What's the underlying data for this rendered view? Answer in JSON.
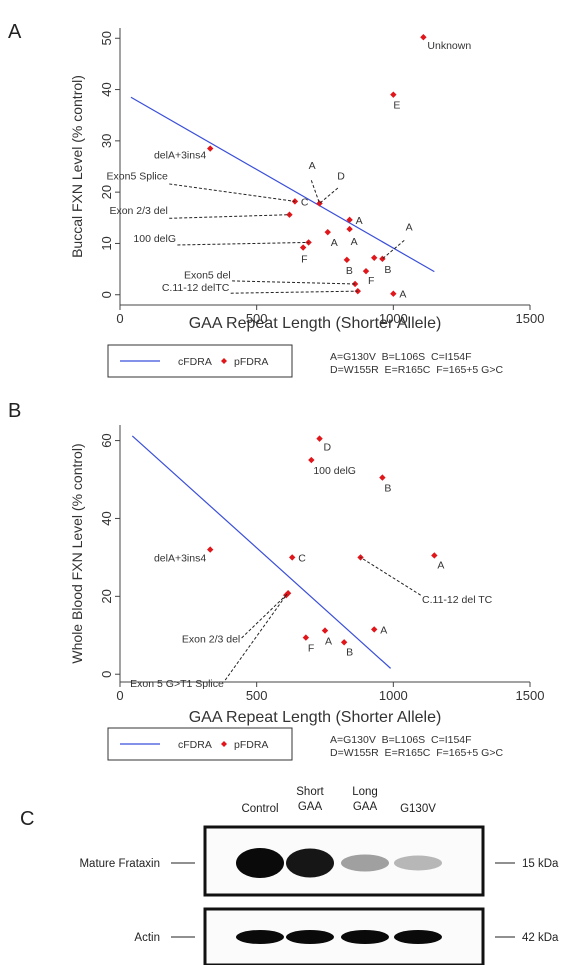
{
  "chart_data": [
    {
      "type": "scatter",
      "panel": "A",
      "xlabel": "GAA Repeat Length (Shorter Allele)",
      "ylabel": "Buccal FXN Level (% control)",
      "xlim": [
        0,
        1500
      ],
      "ylim": [
        -2,
        52
      ],
      "xticks": [
        {
          "v": 0,
          "t": "0"
        },
        {
          "v": 500,
          "t": "500"
        },
        {
          "v": 1000,
          "t": "1000"
        },
        {
          "v": 1500,
          "t": "1500"
        }
      ],
      "yticks": [
        {
          "v": 0,
          "t": "0"
        },
        {
          "v": 10,
          "t": "10"
        },
        {
          "v": 20,
          "t": "20"
        },
        {
          "v": 30,
          "t": "30"
        },
        {
          "v": 40,
          "t": "40"
        },
        {
          "v": 50,
          "t": "50"
        }
      ],
      "series": [
        {
          "name": "cFDRA",
          "kind": "line",
          "color": "#3a4fd9",
          "x": [
            40,
            1150
          ],
          "y": [
            38.5,
            4.5
          ]
        },
        {
          "name": "pFDRA",
          "kind": "scatter",
          "color": "#e0161b",
          "points": [
            {
              "x": 1110,
              "y": 50.2
            },
            {
              "x": 1000,
              "y": 39
            },
            {
              "x": 330,
              "y": 28.5
            },
            {
              "x": 730,
              "y": 17.8
            },
            {
              "x": 640,
              "y": 18.2
            },
            {
              "x": 620,
              "y": 15.6
            },
            {
              "x": 840,
              "y": 14.6
            },
            {
              "x": 840,
              "y": 12.8
            },
            {
              "x": 760,
              "y": 12.2
            },
            {
              "x": 690,
              "y": 10.2
            },
            {
              "x": 670,
              "y": 9.2
            },
            {
              "x": 830,
              "y": 6.8
            },
            {
              "x": 930,
              "y": 7.2
            },
            {
              "x": 960,
              "y": 7
            },
            {
              "x": 900,
              "y": 4.6
            },
            {
              "x": 860,
              "y": 2.1
            },
            {
              "x": 870,
              "y": 0.7
            },
            {
              "x": 1000,
              "y": 0.2
            }
          ]
        }
      ],
      "annotations": [
        {
          "text": "Unknown",
          "x": 1110,
          "y": 50.2,
          "dx": 4,
          "dy": 12,
          "anchor": "start"
        },
        {
          "text": "E",
          "x": 1000,
          "y": 39,
          "dx": 0,
          "dy": 14,
          "anchor": "start"
        },
        {
          "text": "delA+3ins4",
          "x": 330,
          "y": 28.5,
          "dx": -4,
          "dy": 10,
          "anchor": "end"
        },
        {
          "text": "Exon5 Splice",
          "tx": 175,
          "ty": 22.5,
          "anchor": "end",
          "lx": 640,
          "ly": 18.2,
          "lsx": 180,
          "lsy": 21.6
        },
        {
          "text": "Exon 2/3 del",
          "tx": 175,
          "ty": 15.7,
          "anchor": "end",
          "lx": 620,
          "ly": 15.6,
          "lsx": 180,
          "lsy": 14.9
        },
        {
          "text": "100 delG",
          "tx": 205,
          "ty": 10.3,
          "anchor": "end",
          "lx": 690,
          "ly": 10.2,
          "lsx": 210,
          "lsy": 9.7
        },
        {
          "text": "Exon5 del",
          "tx": 405,
          "ty": 3.2,
          "anchor": "end",
          "lx": 860,
          "ly": 2.1,
          "lsx": 410,
          "lsy": 2.7
        },
        {
          "text": "C.11-12 delTC",
          "tx": 400,
          "ty": 0.7,
          "anchor": "end",
          "lx": 870,
          "ly": 0.7,
          "lsx": 405,
          "lsy": 0.3
        },
        {
          "text": "A",
          "tx": 690,
          "ty": 24.5,
          "anchor": "start",
          "lx": 730,
          "ly": 17.8,
          "lsx": 700,
          "lsy": 22.3
        },
        {
          "text": "D",
          "tx": 795,
          "ty": 22.5,
          "anchor": "start",
          "lx": 730,
          "ly": 17.8,
          "lsx": 797,
          "lsy": 20.8
        },
        {
          "text": "C",
          "x": 640,
          "y": 18.2,
          "dx": 6,
          "dy": 4,
          "anchor": "start"
        },
        {
          "text": "A",
          "x": 840,
          "y": 14.6,
          "dx": 6,
          "dy": 4,
          "anchor": "start"
        },
        {
          "text": "A",
          "x": 840,
          "y": 12.8,
          "dx": 1,
          "dy": 16,
          "anchor": "start"
        },
        {
          "text": "A",
          "x": 760,
          "y": 12.2,
          "dx": 3,
          "dy": 14,
          "anchor": "start"
        },
        {
          "text": "F",
          "x": 670,
          "y": 9.2,
          "dx": -2,
          "dy": 15,
          "anchor": "start"
        },
        {
          "text": "B",
          "x": 830,
          "y": 6.8,
          "dx": -1,
          "dy": 14,
          "anchor": "start"
        },
        {
          "text": "B",
          "x": 960,
          "y": 7,
          "dx": 2,
          "dy": 14,
          "anchor": "start"
        },
        {
          "text": "F",
          "x": 900,
          "y": 4.6,
          "dx": 2,
          "dy": 13,
          "anchor": "start"
        },
        {
          "text": "A",
          "x": 1000,
          "y": 0.2,
          "dx": 6,
          "dy": 4,
          "anchor": "start"
        },
        {
          "text": "A",
          "tx": 1045,
          "ty": 12.5,
          "anchor": "start",
          "lx": 960,
          "ly": 7,
          "lsx": 1040,
          "lsy": 10.6
        }
      ],
      "legend": {
        "line_label": "cFDRA",
        "point_label": "pFDRA"
      },
      "key_lines": [
        "A=G130V  B=L106S  C=I154F",
        "D=W155R  E=R165C  F=165+5 G>C"
      ]
    },
    {
      "type": "scatter",
      "panel": "B",
      "xlabel": "GAA Repeat Length (Shorter Allele)",
      "ylabel": "Whole Blood FXN Level (% control)",
      "xlim": [
        0,
        1500
      ],
      "ylim": [
        -2,
        64
      ],
      "xticks": [
        {
          "v": 0,
          "t": "0"
        },
        {
          "v": 500,
          "t": "500"
        },
        {
          "v": 1000,
          "t": "1000"
        },
        {
          "v": 1500,
          "t": "1500"
        }
      ],
      "yticks": [
        {
          "v": 0,
          "t": "0"
        },
        {
          "v": 20,
          "t": "20"
        },
        {
          "v": 40,
          "t": "40"
        },
        {
          "v": 60,
          "t": "60"
        }
      ],
      "series": [
        {
          "name": "cFDRA",
          "kind": "line",
          "color": "#3a4fd9",
          "x": [
            45,
            990
          ],
          "y": [
            61.2,
            1.5
          ]
        },
        {
          "name": "pFDRA",
          "kind": "scatter",
          "color": "#e0161b",
          "points": [
            {
              "x": 730,
              "y": 60.5
            },
            {
              "x": 700,
              "y": 55
            },
            {
              "x": 960,
              "y": 50.5
            },
            {
              "x": 330,
              "y": 32
            },
            {
              "x": 630,
              "y": 30
            },
            {
              "x": 880,
              "y": 30
            },
            {
              "x": 1150,
              "y": 30.5
            },
            {
              "x": 615,
              "y": 20.8
            },
            {
              "x": 608,
              "y": 20.3
            },
            {
              "x": 680,
              "y": 9.4
            },
            {
              "x": 750,
              "y": 11.2
            },
            {
              "x": 820,
              "y": 8.2
            },
            {
              "x": 930,
              "y": 11.5
            }
          ]
        }
      ],
      "annotations": [
        {
          "text": "D",
          "x": 730,
          "y": 60.5,
          "dx": 4,
          "dy": 12,
          "anchor": "start"
        },
        {
          "text": "100 delG",
          "x": 700,
          "y": 55,
          "dx": 2,
          "dy": 14,
          "anchor": "start"
        },
        {
          "text": "B",
          "x": 960,
          "y": 50.5,
          "dx": 2,
          "dy": 14,
          "anchor": "start"
        },
        {
          "text": "delA+3ins4",
          "x": 330,
          "y": 32,
          "dx": -4,
          "dy": 12,
          "anchor": "end"
        },
        {
          "text": "C",
          "x": 630,
          "y": 30,
          "dx": 6,
          "dy": 4,
          "anchor": "start"
        },
        {
          "text": "A",
          "x": 1150,
          "y": 30.5,
          "dx": 3,
          "dy": 13,
          "anchor": "start"
        },
        {
          "text": "C.11-12 del TC",
          "tx": 1105,
          "ty": 18.3,
          "anchor": "start",
          "lx": 880,
          "ly": 30,
          "lsx": 1100,
          "lsy": 20.3
        },
        {
          "text": "Exon 2/3 del",
          "tx": 440,
          "ty": 8.1,
          "anchor": "end",
          "lx": 615,
          "ly": 20.8,
          "lsx": 445,
          "lsy": 9.3
        },
        {
          "text": "Exon 5 G>T1 Splice",
          "tx": 380,
          "ty": -3.3,
          "anchor": "end",
          "lx": 608,
          "ly": 20.3,
          "lsx": 385,
          "lsy": -1.5
        },
        {
          "text": "F",
          "x": 680,
          "y": 9.4,
          "dx": 2,
          "dy": 14,
          "anchor": "start"
        },
        {
          "text": "A",
          "x": 750,
          "y": 11.2,
          "dx": 0,
          "dy": 14,
          "anchor": "start"
        },
        {
          "text": "B",
          "x": 820,
          "y": 8.2,
          "dx": 2,
          "dy": 13,
          "anchor": "start"
        },
        {
          "text": "A",
          "x": 930,
          "y": 11.5,
          "dx": 6,
          "dy": 4,
          "anchor": "start"
        }
      ],
      "legend": {
        "line_label": "cFDRA",
        "point_label": "pFDRA"
      },
      "key_lines": [
        "A=G130V  B=L106S  C=I154F",
        "D=W155R  E=R165C  F=165+5 G>C"
      ]
    }
  ],
  "western_blot": {
    "lanes": [
      "Control",
      "Short\nGAA",
      "Long\nGAA",
      "G130V"
    ],
    "rows": [
      {
        "label": "Mature Frataxin",
        "marker": "15 kDa",
        "intensity": [
          1.0,
          0.95,
          0.35,
          0.25
        ]
      },
      {
        "label": "Actin",
        "marker": "42 kDa",
        "intensity": [
          1.0,
          1.0,
          1.0,
          1.0
        ]
      }
    ]
  },
  "panel_letters": [
    "A",
    "B",
    "C"
  ]
}
